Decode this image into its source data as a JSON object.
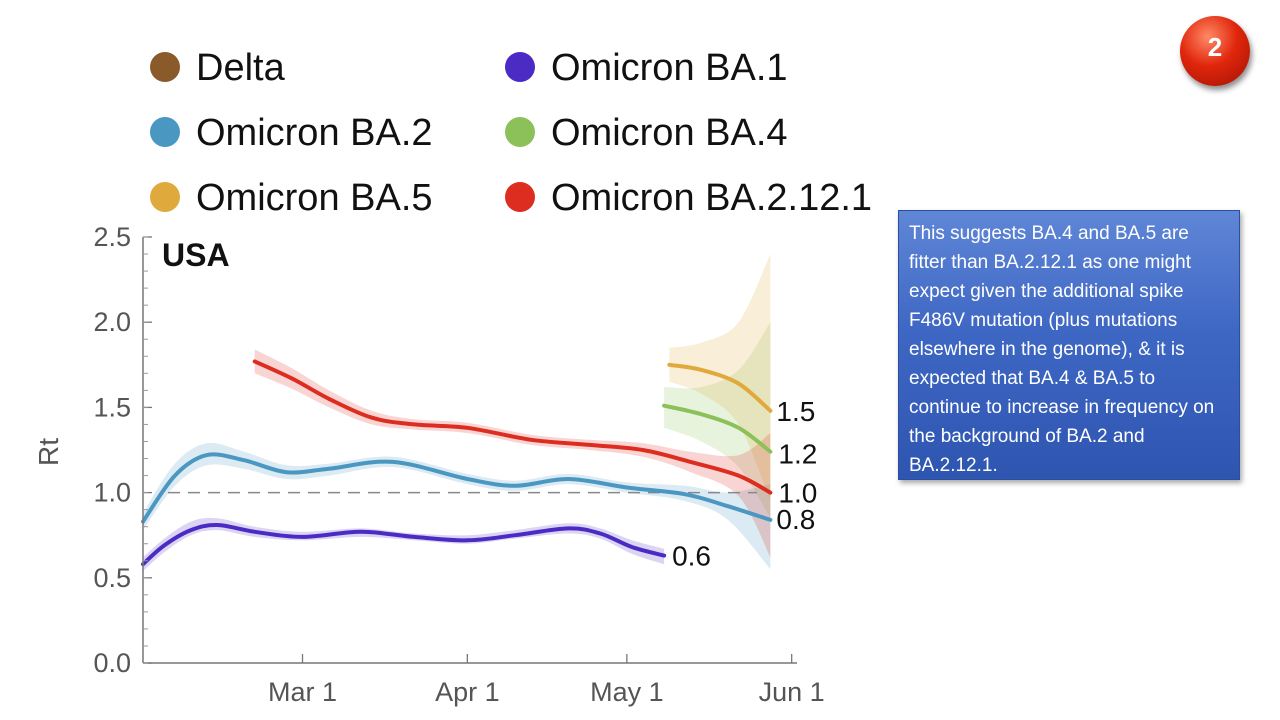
{
  "slide": {
    "note": "This suggests BA.4 and BA.5 are fitter than BA.2.12.1 as one might expect given the additional spike F486V mutation (plus mutations elsewhere in the genome), & it is expected that BA.4 & BA.5 to continue to increase in frequency on the background of BA.2 and BA.2.12.1.",
    "badge_number": "2"
  },
  "chart_data": {
    "type": "line",
    "region_label": "USA",
    "title": "",
    "xlabel": "",
    "ylabel": "Rt",
    "ylim": [
      0,
      2.5
    ],
    "y_ticks": [
      "0.0",
      "0.5",
      "1.0",
      "1.5",
      "2.0",
      "2.5"
    ],
    "x_ticks": [
      "Mar 1",
      "Apr 1",
      "May 1",
      "Jun 1"
    ],
    "x_domain": [
      "2022-01-30",
      "2022-06-02"
    ],
    "reference_line": 1.0,
    "grid": false,
    "legend_position": "top",
    "legend": [
      "Delta",
      "Omicron BA.1",
      "Omicron BA.2",
      "Omicron BA.4",
      "Omicron BA.5",
      "Omicron BA.2.12.1"
    ],
    "series": [
      {
        "name": "Delta",
        "color": "#8b5a2b",
        "points": []
      },
      {
        "name": "Omicron BA.1",
        "color": "#4b2bc4",
        "end_label": "0.6",
        "points": [
          {
            "x": "2022-01-30",
            "y": 0.58,
            "lo": 0.54,
            "hi": 0.62
          },
          {
            "x": "2022-02-03",
            "y": 0.69,
            "lo": 0.65,
            "hi": 0.73
          },
          {
            "x": "2022-02-08",
            "y": 0.78,
            "lo": 0.75,
            "hi": 0.83
          },
          {
            "x": "2022-02-13",
            "y": 0.81,
            "lo": 0.78,
            "hi": 0.85
          },
          {
            "x": "2022-02-20",
            "y": 0.77,
            "lo": 0.74,
            "hi": 0.8
          },
          {
            "x": "2022-03-01",
            "y": 0.74,
            "lo": 0.72,
            "hi": 0.77
          },
          {
            "x": "2022-03-12",
            "y": 0.77,
            "lo": 0.74,
            "hi": 0.79
          },
          {
            "x": "2022-03-22",
            "y": 0.74,
            "lo": 0.72,
            "hi": 0.76
          },
          {
            "x": "2022-04-01",
            "y": 0.72,
            "lo": 0.7,
            "hi": 0.75
          },
          {
            "x": "2022-04-10",
            "y": 0.75,
            "lo": 0.73,
            "hi": 0.78
          },
          {
            "x": "2022-04-20",
            "y": 0.79,
            "lo": 0.76,
            "hi": 0.82
          },
          {
            "x": "2022-04-26",
            "y": 0.76,
            "lo": 0.73,
            "hi": 0.79
          },
          {
            "x": "2022-05-02",
            "y": 0.68,
            "lo": 0.64,
            "hi": 0.72
          },
          {
            "x": "2022-05-08",
            "y": 0.63,
            "lo": 0.58,
            "hi": 0.67
          }
        ]
      },
      {
        "name": "Omicron BA.2",
        "color": "#4a97c2",
        "end_label": "0.8",
        "points": [
          {
            "x": "2022-01-30",
            "y": 0.83,
            "lo": 0.78,
            "hi": 0.88
          },
          {
            "x": "2022-02-05",
            "y": 1.1,
            "lo": 1.04,
            "hi": 1.17
          },
          {
            "x": "2022-02-11",
            "y": 1.22,
            "lo": 1.16,
            "hi": 1.29
          },
          {
            "x": "2022-02-18",
            "y": 1.19,
            "lo": 1.14,
            "hi": 1.24
          },
          {
            "x": "2022-02-26",
            "y": 1.12,
            "lo": 1.08,
            "hi": 1.16
          },
          {
            "x": "2022-03-06",
            "y": 1.14,
            "lo": 1.1,
            "hi": 1.17
          },
          {
            "x": "2022-03-18",
            "y": 1.18,
            "lo": 1.15,
            "hi": 1.21
          },
          {
            "x": "2022-04-01",
            "y": 1.08,
            "lo": 1.05,
            "hi": 1.11
          },
          {
            "x": "2022-04-10",
            "y": 1.04,
            "lo": 1.01,
            "hi": 1.07
          },
          {
            "x": "2022-04-20",
            "y": 1.08,
            "lo": 1.05,
            "hi": 1.11
          },
          {
            "x": "2022-05-01",
            "y": 1.03,
            "lo": 1.0,
            "hi": 1.06
          },
          {
            "x": "2022-05-12",
            "y": 0.99,
            "lo": 0.95,
            "hi": 1.04
          },
          {
            "x": "2022-05-20",
            "y": 0.92,
            "lo": 0.84,
            "hi": 1.0
          },
          {
            "x": "2022-05-28",
            "y": 0.84,
            "lo": 0.55,
            "hi": 1.05
          }
        ]
      },
      {
        "name": "Omicron BA.4",
        "color": "#8cc15a",
        "end_label": "1.2",
        "points": [
          {
            "x": "2022-05-08",
            "y": 1.51,
            "lo": 1.38,
            "hi": 1.62
          },
          {
            "x": "2022-05-15",
            "y": 1.46,
            "lo": 1.3,
            "hi": 1.62
          },
          {
            "x": "2022-05-22",
            "y": 1.38,
            "lo": 1.15,
            "hi": 1.72
          },
          {
            "x": "2022-05-28",
            "y": 1.24,
            "lo": 0.85,
            "hi": 2.0
          }
        ]
      },
      {
        "name": "Omicron BA.5",
        "color": "#e0a93b",
        "end_label": "1.5",
        "points": [
          {
            "x": "2022-05-09",
            "y": 1.75,
            "lo": 1.65,
            "hi": 1.85
          },
          {
            "x": "2022-05-15",
            "y": 1.72,
            "lo": 1.58,
            "hi": 1.88
          },
          {
            "x": "2022-05-22",
            "y": 1.64,
            "lo": 1.4,
            "hi": 2.0
          },
          {
            "x": "2022-05-28",
            "y": 1.48,
            "lo": 0.95,
            "hi": 2.4
          }
        ]
      },
      {
        "name": "Omicron BA.2.12.1",
        "color": "#dd2c20",
        "end_label": "1.0",
        "points": [
          {
            "x": "2022-02-20",
            "y": 1.77,
            "lo": 1.7,
            "hi": 1.84
          },
          {
            "x": "2022-02-27",
            "y": 1.67,
            "lo": 1.61,
            "hi": 1.73
          },
          {
            "x": "2022-03-06",
            "y": 1.55,
            "lo": 1.5,
            "hi": 1.6
          },
          {
            "x": "2022-03-14",
            "y": 1.44,
            "lo": 1.4,
            "hi": 1.48
          },
          {
            "x": "2022-03-22",
            "y": 1.4,
            "lo": 1.37,
            "hi": 1.43
          },
          {
            "x": "2022-04-01",
            "y": 1.38,
            "lo": 1.35,
            "hi": 1.41
          },
          {
            "x": "2022-04-13",
            "y": 1.31,
            "lo": 1.28,
            "hi": 1.34
          },
          {
            "x": "2022-04-24",
            "y": 1.28,
            "lo": 1.25,
            "hi": 1.31
          },
          {
            "x": "2022-05-04",
            "y": 1.25,
            "lo": 1.21,
            "hi": 1.29
          },
          {
            "x": "2022-05-13",
            "y": 1.18,
            "lo": 1.12,
            "hi": 1.24
          },
          {
            "x": "2022-05-22",
            "y": 1.1,
            "lo": 0.98,
            "hi": 1.22
          },
          {
            "x": "2022-05-28",
            "y": 1.0,
            "lo": 0.62,
            "hi": 1.35
          }
        ]
      }
    ]
  }
}
